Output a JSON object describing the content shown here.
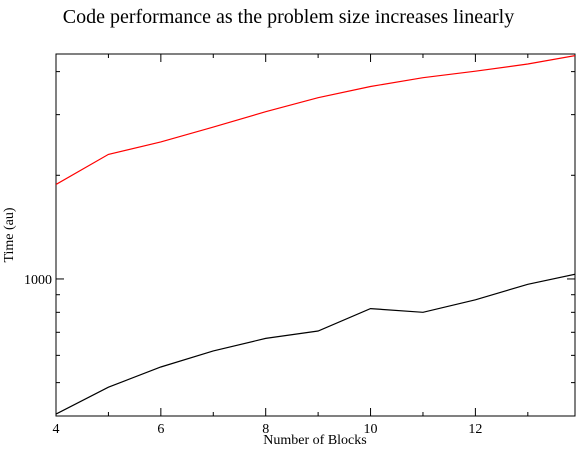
{
  "chart_data": {
    "type": "line",
    "title": "Code performance as the problem size increases linearly",
    "xlabel": "Number of Blocks",
    "ylabel": "Time (au)",
    "xlim": [
      4,
      13.9
    ],
    "ylim": [
      400,
      4500
    ],
    "yscale": "log",
    "grid": false,
    "legend": "none",
    "x_ticks": [
      4,
      6,
      8,
      10,
      12
    ],
    "y_tick_labels": [
      {
        "value": 1000,
        "label": "1000"
      }
    ],
    "series": [
      {
        "color": "#ff0000",
        "x": [
          4,
          5,
          6,
          7,
          8,
          9,
          10,
          11,
          12,
          13,
          14
        ],
        "values": [
          1880,
          2300,
          2500,
          2760,
          3060,
          3360,
          3620,
          3840,
          4010,
          4210,
          4480
        ]
      },
      {
        "color": "#000000",
        "x": [
          4,
          5,
          6,
          7,
          8,
          9,
          10,
          11,
          12,
          13,
          14
        ],
        "values": [
          405,
          485,
          555,
          618,
          672,
          706,
          820,
          800,
          870,
          965,
          1040
        ]
      }
    ]
  }
}
